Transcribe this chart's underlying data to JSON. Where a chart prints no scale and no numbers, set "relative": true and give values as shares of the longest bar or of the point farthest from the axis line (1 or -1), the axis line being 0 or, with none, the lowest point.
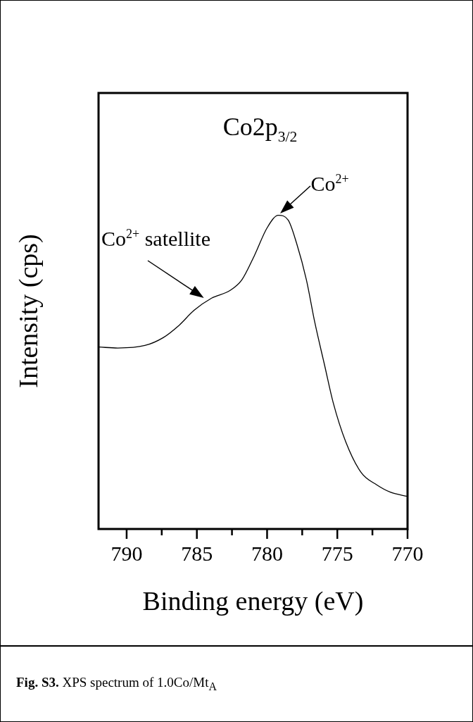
{
  "chart_data": {
    "type": "line",
    "title": "Co2p$_{3/2}$",
    "xlabel": "Binding energy (eV)",
    "ylabel": "Intensity (cps)",
    "relative": true,
    "x": [
      791.95,
      790.64,
      788.7,
      787.4,
      786.3,
      785.2,
      783.95,
      782.65,
      781.8,
      780.9,
      780.0,
      779.2,
      778.5,
      777.9,
      777.2,
      776.6,
      775.9,
      775.3,
      774.4,
      773.3,
      772.2,
      771.2,
      770.0
    ],
    "series": [
      {
        "color": "#000000",
        "values": [
          0.58,
          0.577,
          0.585,
          0.61,
          0.648,
          0.697,
          0.736,
          0.76,
          0.794,
          0.872,
          0.96,
          1.0,
          0.985,
          0.911,
          0.794,
          0.658,
          0.521,
          0.404,
          0.278,
          0.18,
          0.141,
          0.117,
          0.104
        ]
      }
    ],
    "xlim": [
      792,
      770
    ],
    "xticks": [
      790,
      {
        "value": 787.5,
        "label": null
      },
      785,
      {
        "value": 782.5,
        "label": null
      },
      780,
      {
        "value": 777.5,
        "label": null
      },
      775,
      {
        "value": 772.5,
        "label": null
      },
      770
    ],
    "marker": "none",
    "grid": false,
    "legend": false,
    "annotations": [
      {
        "text": "Co$^{2+}$",
        "x": 779.2,
        "y": 1.0
      },
      {
        "text": "Co$^{2+}$ satellite",
        "x": 784.3,
        "y": 0.73
      },
      "Fig. S3. XPS spectrum of 1.0Co/Mt$_{A}$"
    ]
  }
}
